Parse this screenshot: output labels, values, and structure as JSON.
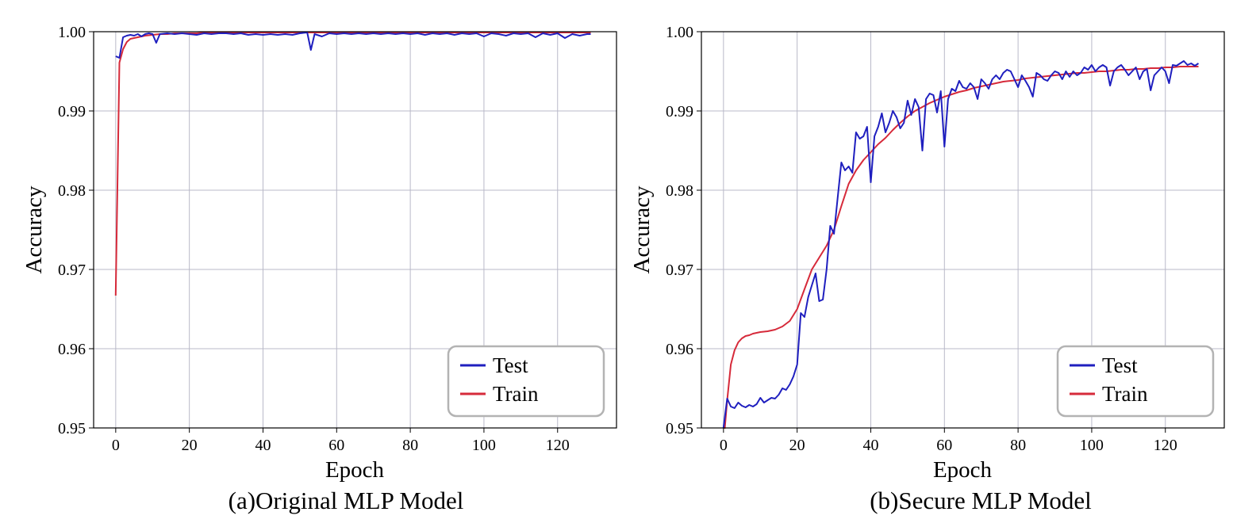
{
  "chart_data": [
    {
      "type": "line",
      "caption": "(a)Original MLP Model",
      "xlabel": "Epoch",
      "ylabel": "Accuracy",
      "xlim": [
        -6,
        136
      ],
      "ylim": [
        0.95,
        1.0
      ],
      "xticks": [
        0,
        20,
        40,
        60,
        80,
        100,
        120
      ],
      "yticks": [
        0.95,
        0.96,
        0.97,
        0.98,
        0.99,
        1.0
      ],
      "ytick_labels": [
        "0.95",
        "0.96",
        "0.97",
        "0.98",
        "0.99",
        "1.00"
      ],
      "grid": true,
      "legend_position": "lower-right",
      "colors": {
        "Test": "#1f1fbf",
        "Train": "#d62a3a"
      },
      "series": [
        {
          "name": "Test",
          "x": [
            0,
            1,
            2,
            3,
            4,
            5,
            6,
            7,
            8,
            9,
            10,
            11,
            12,
            14,
            16,
            18,
            20,
            22,
            24,
            26,
            28,
            30,
            32,
            34,
            36,
            38,
            40,
            42,
            44,
            46,
            48,
            50,
            52,
            53,
            54,
            56,
            58,
            60,
            62,
            64,
            66,
            68,
            70,
            72,
            74,
            76,
            78,
            80,
            82,
            84,
            86,
            88,
            90,
            92,
            94,
            96,
            98,
            100,
            102,
            104,
            106,
            108,
            110,
            112,
            114,
            116,
            118,
            120,
            122,
            124,
            126,
            128,
            129
          ],
          "y": [
            0.9969,
            0.9967,
            0.9993,
            0.9995,
            0.9996,
            0.9995,
            0.9997,
            0.9994,
            0.9997,
            0.9998,
            0.9997,
            0.9986,
            0.9997,
            0.9998,
            0.9997,
            0.9998,
            0.9997,
            0.9996,
            0.9998,
            0.9997,
            0.9998,
            0.9998,
            0.9997,
            0.9998,
            0.9996,
            0.9997,
            0.9996,
            0.9997,
            0.9996,
            0.9997,
            0.9996,
            0.9998,
            0.9999,
            0.9977,
            0.9997,
            0.9994,
            0.9998,
            0.9997,
            0.9998,
            0.9997,
            0.9998,
            0.9997,
            0.9998,
            0.9997,
            0.9998,
            0.9997,
            0.9998,
            0.9997,
            0.9998,
            0.9996,
            0.9998,
            0.9997,
            0.9998,
            0.9996,
            0.9998,
            0.9997,
            0.9998,
            0.9994,
            0.9998,
            0.9997,
            0.9995,
            0.9998,
            0.9997,
            0.9998,
            0.9993,
            0.9998,
            0.9996,
            0.9998,
            0.9992,
            0.9997,
            0.9995,
            0.9997,
            0.9997
          ]
        },
        {
          "name": "Train",
          "x": [
            0,
            1,
            2,
            3,
            4,
            5,
            6,
            8,
            10,
            12,
            14,
            16,
            18,
            20,
            22,
            24,
            26,
            28,
            30,
            35,
            40,
            45,
            50,
            55,
            60,
            65,
            70,
            75,
            80,
            85,
            90,
            95,
            100,
            105,
            110,
            115,
            120,
            125,
            129
          ],
          "y": [
            0.9667,
            0.9961,
            0.9978,
            0.9987,
            0.9991,
            0.9992,
            0.9993,
            0.9995,
            0.9996,
            0.9997,
            0.9997,
            0.9998,
            0.9998,
            0.9998,
            0.9998,
            0.9999,
            0.9999,
            0.9999,
            0.9999,
            0.9999,
            0.9999,
            0.9999,
            0.9999,
            0.9999,
            0.9999,
            0.9999,
            0.9999,
            0.9999,
            0.9999,
            0.9999,
            0.9999,
            0.9999,
            0.9999,
            0.9999,
            0.9999,
            0.9999,
            0.9999,
            0.9999,
            0.9999
          ]
        }
      ]
    },
    {
      "type": "line",
      "caption": "(b)Secure MLP Model",
      "xlabel": "Epoch",
      "ylabel": "Accuracy",
      "xlim": [
        -6,
        136
      ],
      "ylim": [
        0.95,
        1.0
      ],
      "xticks": [
        0,
        20,
        40,
        60,
        80,
        100,
        120
      ],
      "yticks": [
        0.95,
        0.96,
        0.97,
        0.98,
        0.99,
        1.0
      ],
      "ytick_labels": [
        "0.95",
        "0.96",
        "0.97",
        "0.98",
        "0.99",
        "1.00"
      ],
      "grid": true,
      "legend_position": "lower-right",
      "colors": {
        "Test": "#1f1fbf",
        "Train": "#d62a3a"
      },
      "series": [
        {
          "name": "Test",
          "x": [
            0,
            1,
            2,
            3,
            4,
            5,
            6,
            7,
            8,
            9,
            10,
            11,
            12,
            13,
            14,
            15,
            16,
            17,
            18,
            19,
            20,
            21,
            22,
            23,
            24,
            25,
            26,
            27,
            28,
            29,
            30,
            31,
            32,
            33,
            34,
            35,
            36,
            37,
            38,
            39,
            40,
            41,
            42,
            43,
            44,
            45,
            46,
            47,
            48,
            49,
            50,
            51,
            52,
            53,
            54,
            55,
            56,
            57,
            58,
            59,
            60,
            61,
            62,
            63,
            64,
            65,
            66,
            67,
            68,
            69,
            70,
            71,
            72,
            73,
            74,
            75,
            76,
            77,
            78,
            79,
            80,
            81,
            82,
            83,
            84,
            85,
            86,
            87,
            88,
            89,
            90,
            91,
            92,
            93,
            94,
            95,
            96,
            97,
            98,
            99,
            100,
            101,
            102,
            103,
            104,
            105,
            106,
            107,
            108,
            109,
            110,
            111,
            112,
            113,
            114,
            115,
            116,
            117,
            118,
            119,
            120,
            121,
            122,
            123,
            124,
            125,
            126,
            127,
            128,
            129
          ],
          "y": [
            0.95,
            0.9537,
            0.9527,
            0.9525,
            0.9532,
            0.9528,
            0.9526,
            0.9529,
            0.9527,
            0.953,
            0.9538,
            0.9532,
            0.9535,
            0.9538,
            0.9537,
            0.9542,
            0.955,
            0.9548,
            0.9555,
            0.9565,
            0.958,
            0.9645,
            0.964,
            0.9665,
            0.968,
            0.9695,
            0.966,
            0.9662,
            0.97,
            0.9755,
            0.9745,
            0.979,
            0.9835,
            0.9825,
            0.983,
            0.9822,
            0.9873,
            0.9865,
            0.9868,
            0.988,
            0.981,
            0.9868,
            0.988,
            0.9897,
            0.9873,
            0.9885,
            0.99,
            0.9892,
            0.9878,
            0.9885,
            0.9913,
            0.9895,
            0.9915,
            0.9905,
            0.985,
            0.9915,
            0.9922,
            0.992,
            0.9898,
            0.9925,
            0.9855,
            0.9915,
            0.9928,
            0.9925,
            0.9938,
            0.993,
            0.9928,
            0.9935,
            0.993,
            0.9915,
            0.994,
            0.9935,
            0.9928,
            0.994,
            0.9945,
            0.994,
            0.9948,
            0.9952,
            0.995,
            0.994,
            0.993,
            0.9945,
            0.9938,
            0.993,
            0.9918,
            0.9948,
            0.9945,
            0.994,
            0.9938,
            0.9945,
            0.995,
            0.9948,
            0.994,
            0.995,
            0.9943,
            0.995,
            0.9945,
            0.9948,
            0.9955,
            0.9952,
            0.9958,
            0.995,
            0.9955,
            0.9958,
            0.9955,
            0.9932,
            0.995,
            0.9955,
            0.9958,
            0.9952,
            0.9945,
            0.995,
            0.9955,
            0.994,
            0.995,
            0.9953,
            0.9926,
            0.9945,
            0.995,
            0.9955,
            0.995,
            0.9935,
            0.9958,
            0.9957,
            0.996,
            0.9963,
            0.9958,
            0.996,
            0.9957,
            0.996
          ]
        },
        {
          "name": "Train",
          "x": [
            0,
            1,
            2,
            3,
            4,
            5,
            6,
            7,
            8,
            9,
            10,
            12,
            14,
            16,
            18,
            20,
            22,
            24,
            26,
            28,
            30,
            32,
            34,
            36,
            38,
            40,
            42,
            44,
            46,
            48,
            50,
            52,
            54,
            56,
            58,
            60,
            62,
            64,
            66,
            68,
            70,
            72,
            74,
            76,
            78,
            80,
            82,
            84,
            86,
            88,
            90,
            92,
            94,
            96,
            98,
            100,
            102,
            104,
            106,
            108,
            110,
            112,
            114,
            116,
            118,
            120,
            122,
            124,
            126,
            128,
            129
          ],
          "y": [
            0.948,
            0.9535,
            0.958,
            0.9598,
            0.9608,
            0.9613,
            0.9616,
            0.9617,
            0.9619,
            0.962,
            0.9621,
            0.9622,
            0.9624,
            0.9628,
            0.9635,
            0.965,
            0.9675,
            0.97,
            0.9715,
            0.973,
            0.975,
            0.978,
            0.9808,
            0.9825,
            0.9838,
            0.9848,
            0.9858,
            0.9866,
            0.9876,
            0.9885,
            0.9893,
            0.99,
            0.9905,
            0.991,
            0.9914,
            0.9918,
            0.9921,
            0.9924,
            0.9926,
            0.9929,
            0.9931,
            0.9933,
            0.9935,
            0.9937,
            0.9938,
            0.9939,
            0.9941,
            0.9942,
            0.9943,
            0.9944,
            0.9945,
            0.9946,
            0.9947,
            0.9948,
            0.9948,
            0.9949,
            0.995,
            0.995,
            0.9951,
            0.9952,
            0.9952,
            0.9953,
            0.9953,
            0.9954,
            0.9954,
            0.9955,
            0.9955,
            0.9956,
            0.9956,
            0.9956,
            0.9956
          ]
        }
      ]
    }
  ]
}
